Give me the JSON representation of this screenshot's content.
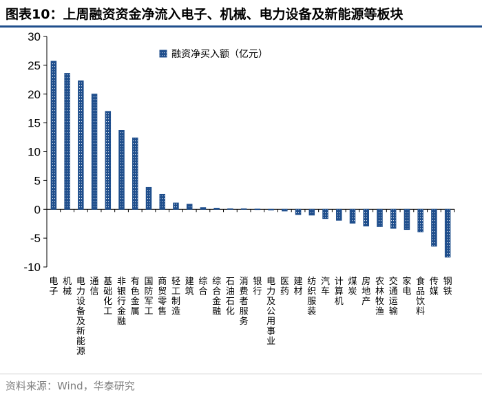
{
  "title": "图表10：上周融资资金净流入电子、机械、电力设备及新能源等板块",
  "source": "资料来源：Wind，华泰研究",
  "colors": {
    "bar": "#1f4e8c",
    "bar_hatch": "#ffffff",
    "axis": "#000000",
    "title_rule": "#1f4e8c"
  },
  "chart_data": {
    "type": "bar",
    "title": "",
    "xlabel": "",
    "ylabel": "",
    "ylim": [
      -10,
      30
    ],
    "yticks": [
      -10,
      -5,
      0,
      5,
      10,
      15,
      20,
      25,
      30
    ],
    "grid": false,
    "legend_position": "top-center",
    "categories": [
      "电子",
      "机械",
      "电力设备及新能源",
      "通信",
      "基础化工",
      "非银行金融",
      "有色金属",
      "国防军工",
      "商贸零售",
      "轻工制造",
      "建筑",
      "综合",
      "综合金融",
      "石油石化",
      "消费者服务",
      "银行",
      "电力及公用事业",
      "医药",
      "建材",
      "纺织服装",
      "汽车",
      "计算机",
      "煤炭",
      "房地产",
      "农林牧渔",
      "交通运输",
      "家电",
      "食品饮料",
      "传媒",
      "钢铁"
    ],
    "series": [
      {
        "name": "融资净买入额（亿元）",
        "values": [
          25.7,
          23.6,
          22.3,
          20.0,
          17.0,
          13.7,
          12.4,
          3.8,
          2.6,
          1.1,
          0.9,
          0.3,
          0.2,
          0.1,
          0.1,
          0.05,
          -0.1,
          -0.3,
          -0.9,
          -1.0,
          -1.6,
          -1.9,
          -2.4,
          -2.9,
          -3.0,
          -3.3,
          -3.5,
          -3.9,
          -6.4,
          -8.3
        ]
      }
    ]
  }
}
